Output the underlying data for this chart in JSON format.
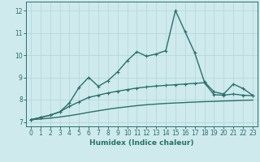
{
  "xlabel": "Humidex (Indice chaleur)",
  "xlim": [
    -0.5,
    23.5
  ],
  "ylim": [
    6.8,
    12.4
  ],
  "yticks": [
    7,
    8,
    9,
    10,
    11,
    12
  ],
  "xticks": [
    0,
    1,
    2,
    3,
    4,
    5,
    6,
    7,
    8,
    9,
    10,
    11,
    12,
    13,
    14,
    15,
    16,
    17,
    18,
    19,
    20,
    21,
    22,
    23
  ],
  "bg_color": "#ceeaed",
  "grid_color": "#b8d8dc",
  "line_color": "#2a7068",
  "line1_x": [
    0,
    1,
    2,
    3,
    4,
    5,
    6,
    7,
    8,
    9,
    10,
    11,
    12,
    13,
    14,
    15,
    16,
    17,
    18,
    19,
    20,
    21,
    22,
    23
  ],
  "line1_y": [
    7.1,
    7.2,
    7.3,
    7.45,
    7.85,
    8.55,
    9.0,
    8.6,
    8.85,
    9.25,
    9.75,
    10.15,
    9.95,
    10.05,
    10.2,
    12.0,
    11.05,
    10.1,
    8.8,
    8.35,
    8.25,
    8.7,
    8.5,
    8.2
  ],
  "line2_x": [
    0,
    1,
    2,
    3,
    4,
    5,
    6,
    7,
    8,
    9,
    10,
    11,
    12,
    13,
    14,
    15,
    16,
    17,
    18,
    19,
    20,
    21,
    22,
    23
  ],
  "line2_y": [
    7.1,
    7.2,
    7.3,
    7.45,
    7.7,
    7.9,
    8.1,
    8.2,
    8.3,
    8.38,
    8.45,
    8.52,
    8.57,
    8.61,
    8.64,
    8.67,
    8.7,
    8.73,
    8.76,
    8.22,
    8.2,
    8.25,
    8.2,
    8.18
  ],
  "line3_x": [
    0,
    1,
    2,
    3,
    4,
    5,
    6,
    7,
    8,
    9,
    10,
    11,
    12,
    13,
    14,
    15,
    16,
    17,
    18,
    19,
    20,
    21,
    22,
    23
  ],
  "line3_y": [
    7.1,
    7.13,
    7.17,
    7.22,
    7.28,
    7.35,
    7.43,
    7.5,
    7.57,
    7.63,
    7.68,
    7.73,
    7.77,
    7.8,
    7.83,
    7.85,
    7.87,
    7.89,
    7.91,
    7.92,
    7.94,
    7.95,
    7.97,
    7.98
  ],
  "markersize": 3,
  "linewidth": 1.0
}
